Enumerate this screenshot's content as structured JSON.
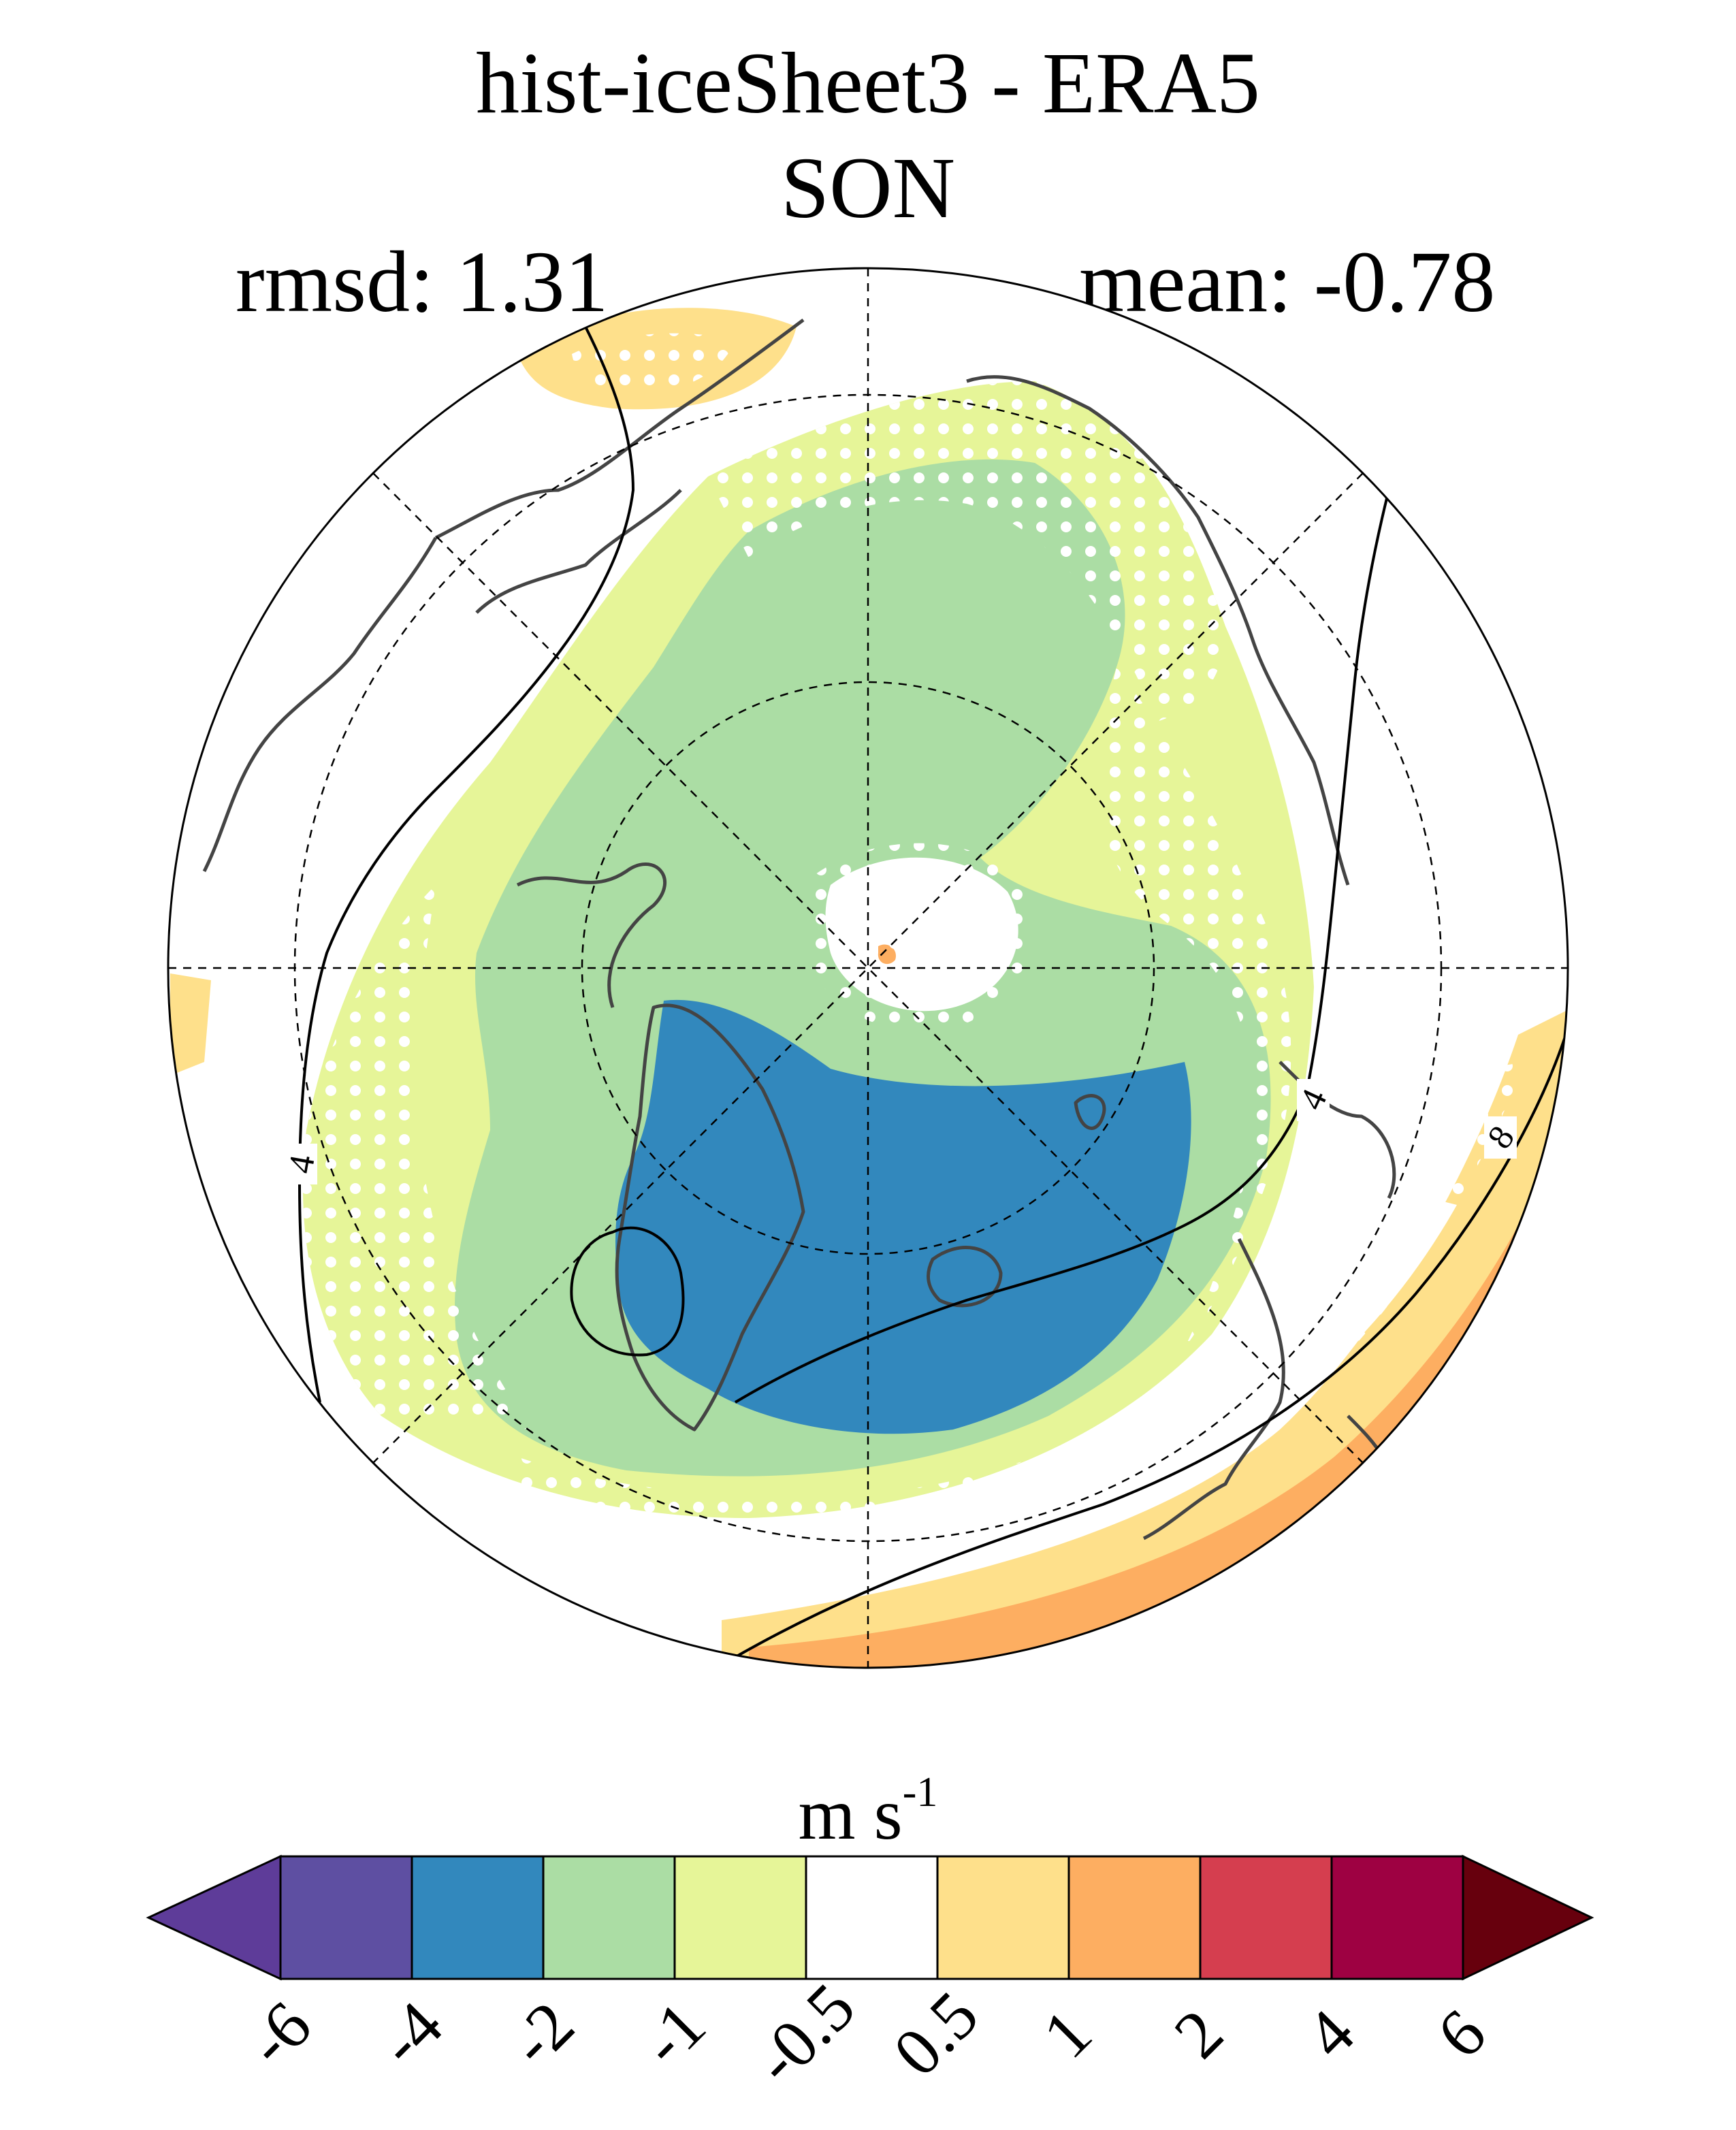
{
  "title": {
    "line1": "hist-iceSheet3 - ERA5",
    "line2": "SON"
  },
  "stats": {
    "rmsd": "rmsd: 1.31",
    "mean": "mean: -0.78"
  },
  "map": {
    "projection": "polar-stereographic",
    "hemisphere": "north",
    "stippling": "white dots",
    "contour_labels": [
      "4",
      "4",
      "8"
    ],
    "colors": {
      "ocean_positive_low": "#fee08b",
      "positive_mid": "#fdae61",
      "negative_small": "#e6f598",
      "negative_mid": "#abdda4",
      "negative_large": "#3288bd",
      "neutral": "#ffffff",
      "coastline": "#444444"
    }
  },
  "colorbar": {
    "units": "m s",
    "units_exponent": "-1",
    "levels": [
      "-6",
      "-4",
      "-2",
      "-1",
      "-0.5",
      "0.5",
      "1",
      "2",
      "4",
      "6"
    ],
    "colors": [
      "#5e3c99",
      "#5e4fa2",
      "#3288bd",
      "#abdda4",
      "#e6f598",
      "#ffffff",
      "#fee08b",
      "#fdae61",
      "#d53e4f",
      "#9e0142",
      "#67000d"
    ]
  }
}
